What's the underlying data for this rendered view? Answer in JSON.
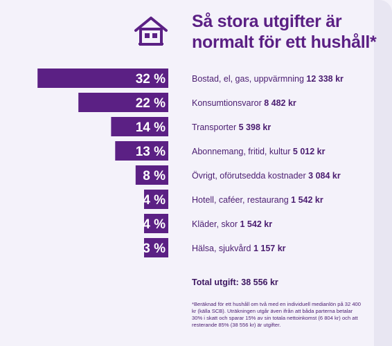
{
  "title": "Så stora utgifter är normalt för ett hushåll*",
  "total": "Total utgift: 38 556 kr",
  "footnote": "*Beräknad för ett hushåll om två med en individuell medianlön på 32 400 kr (källa SCB). Uträkningen utgår även ifrån att båda parterna betalar 30% i skatt och sparar 15% av sin totala nettoinkomst (6 804 kr) och att resterande 85% (38 556 kr) är utgifter.",
  "icon": "house-icon",
  "colors": {
    "bar": "#5b2084",
    "text": "#4a1c70",
    "background": "#f4f2fa"
  },
  "chart_data": {
    "type": "bar",
    "orientation": "horizontal",
    "categories": [
      "Bostad, el, gas, uppvärmning",
      "Konsumtionsvaror",
      "Transporter",
      "Abonnemang, fritid, kultur",
      "Övrigt, oförutsedda kostnader",
      "Hotell, caféer, restaurang",
      "Kläder, skor",
      "Hälsa, sjukvård"
    ],
    "values": [
      32,
      22,
      14,
      13,
      8,
      4,
      4,
      3
    ],
    "value_labels": [
      "32 %",
      "22 %",
      "14 %",
      "13 %",
      "8 %",
      "4 %",
      "4 %",
      "3 %"
    ],
    "amounts": [
      "12 338 kr",
      "8 482 kr",
      "5 398 kr",
      "5 012 kr",
      "3 084 kr",
      "1 542 kr",
      "1 542 kr",
      "1 157 kr"
    ]
  }
}
